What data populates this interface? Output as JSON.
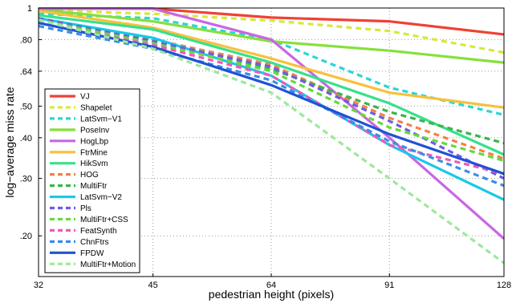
{
  "chart_data": {
    "type": "line",
    "xlabel": "pedestrian height (pixels)",
    "ylabel": "log−average miss rate",
    "x_scale": "log",
    "y_scale": "log",
    "x": [
      32,
      45,
      64,
      91,
      128
    ],
    "xticks": [
      "32",
      "45",
      "64",
      "91",
      "128"
    ],
    "ylim": [
      0.15,
      1
    ],
    "yticks": [
      {
        "value": 1.0,
        "label": "1"
      },
      {
        "value": 0.8,
        "label": ".80"
      },
      {
        "value": 0.64,
        "label": ".64"
      },
      {
        "value": 0.5,
        "label": ".50"
      },
      {
        "value": 0.4,
        "label": ".40"
      },
      {
        "value": 0.3,
        "label": ".30"
      },
      {
        "value": 0.2,
        "label": ".20"
      }
    ],
    "grid": true,
    "legend_position": "bottom-left",
    "series": [
      {
        "name": "VJ",
        "color": "#ef4135",
        "dash": "solid",
        "values": [
          0.995,
          0.995,
          0.935,
          0.91,
          0.83
        ]
      },
      {
        "name": "Shapelet",
        "color": "#d7e83a",
        "dash": "dashed",
        "values": [
          0.985,
          0.96,
          0.915,
          0.85,
          0.73
        ]
      },
      {
        "name": "LatSvm−V1",
        "color": "#2ad6d6",
        "dash": "dashed",
        "values": [
          0.96,
          0.93,
          0.8,
          0.57,
          0.47
        ]
      },
      {
        "name": "PoseInv",
        "color": "#86e03c",
        "dash": "solid",
        "values": [
          0.99,
          0.91,
          0.79,
          0.74,
          0.68
        ]
      },
      {
        "name": "HogLbp",
        "color": "#c966e3",
        "dash": "solid",
        "values": [
          0.995,
          0.995,
          0.8,
          0.4,
          0.196
        ]
      },
      {
        "name": "FtrMine",
        "color": "#f8c03c",
        "dash": "solid",
        "values": [
          0.98,
          0.87,
          0.7,
          0.55,
          0.495
        ]
      },
      {
        "name": "HikSvm",
        "color": "#38e08c",
        "dash": "solid",
        "values": [
          0.95,
          0.86,
          0.68,
          0.51,
          0.355
        ]
      },
      {
        "name": "HOG",
        "color": "#f5804a",
        "dash": "dashed",
        "values": [
          0.93,
          0.8,
          0.67,
          0.46,
          0.345
        ]
      },
      {
        "name": "MultiFtr",
        "color": "#3cb54b",
        "dash": "dashed",
        "values": [
          0.92,
          0.8,
          0.65,
          0.48,
          0.385
        ]
      },
      {
        "name": "LatSvm−V2",
        "color": "#19c8e8",
        "dash": "solid",
        "values": [
          0.93,
          0.81,
          0.62,
          0.38,
          0.258
        ]
      },
      {
        "name": "Pls",
        "color": "#6c5ce8",
        "dash": "dashed",
        "values": [
          0.93,
          0.79,
          0.66,
          0.45,
          0.3
        ]
      },
      {
        "name": "MultiFtr+CSS",
        "color": "#68d83c",
        "dash": "dashed",
        "values": [
          0.92,
          0.78,
          0.64,
          0.43,
          0.34
        ]
      },
      {
        "name": "FeatSynth",
        "color": "#ee5ab8",
        "dash": "dashed",
        "values": [
          0.9,
          0.77,
          0.62,
          0.38,
          0.31
        ]
      },
      {
        "name": "ChnFtrs",
        "color": "#3a8ee6",
        "dash": "dashed",
        "values": [
          0.88,
          0.75,
          0.6,
          0.39,
          0.285
        ]
      },
      {
        "name": "FPDW",
        "color": "#1f52d6",
        "dash": "solid",
        "values": [
          0.9,
          0.76,
          0.58,
          0.41,
          0.31
        ]
      },
      {
        "name": "MultiFtr+Motion",
        "color": "#9ce89c",
        "dash": "dashed",
        "values": [
          0.92,
          0.75,
          0.55,
          0.3,
          0.165
        ]
      }
    ]
  }
}
